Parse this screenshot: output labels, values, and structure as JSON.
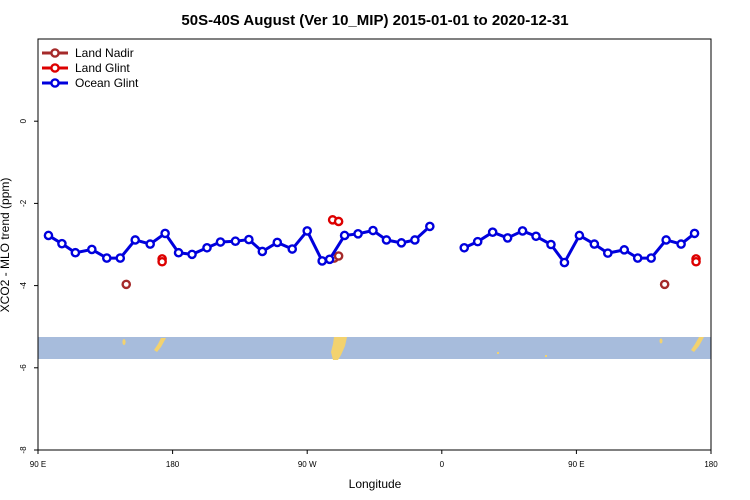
{
  "chart_data": {
    "type": "line",
    "title": "50S-40S August (Ver 10_MIP)   2015-01-01 to 2020-12-31",
    "xlabel": "Longitude",
    "ylabel": "XCO2 - MLO trend (ppm)",
    "xlim": [
      90,
      540
    ],
    "ylim": [
      -8,
      2
    ],
    "x_ticks": [
      {
        "value": 90,
        "label": "90 E"
      },
      {
        "value": 180,
        "label": "180"
      },
      {
        "value": 270,
        "label": "90 W"
      },
      {
        "value": 360,
        "label": "0"
      },
      {
        "value": 450,
        "label": "90 E"
      },
      {
        "value": 540,
        "label": "180"
      }
    ],
    "y_ticks": [
      {
        "value": 0,
        "label": "0"
      },
      {
        "value": -2,
        "label": "-2"
      },
      {
        "value": -4,
        "label": "-4"
      },
      {
        "value": -6,
        "label": "-6"
      },
      {
        "value": -8,
        "label": "-8"
      }
    ],
    "legend_position": "top-left",
    "series": [
      {
        "name": "Land Nadir",
        "color": "#a52a2a",
        "lines": false,
        "points": [
          [
            149,
            -3.97
          ],
          [
            288,
            -3.33
          ],
          [
            291,
            -3.28
          ],
          [
            509,
            -3.97
          ]
        ]
      },
      {
        "name": "Land Glint",
        "color": "#dd0000",
        "lines": false,
        "points": [
          [
            173,
            -3.35
          ],
          [
            173,
            -3.42
          ],
          [
            287,
            -2.4
          ],
          [
            291,
            -2.44
          ],
          [
            530,
            -3.35
          ],
          [
            530,
            -3.42
          ]
        ]
      },
      {
        "name": "Ocean Glint",
        "color": "#0000dd",
        "lines": true,
        "segments": [
          [
            [
              97,
              -2.78
            ],
            [
              106,
              -2.98
            ],
            [
              115,
              -3.2
            ],
            [
              126,
              -3.12
            ],
            [
              136,
              -3.33
            ],
            [
              145,
              -3.33
            ],
            [
              155,
              -2.89
            ],
            [
              165,
              -2.99
            ],
            [
              175,
              -2.73
            ],
            [
              184,
              -3.2
            ],
            [
              193,
              -3.24
            ],
            [
              203,
              -3.08
            ],
            [
              212,
              -2.94
            ],
            [
              222,
              -2.92
            ],
            [
              231,
              -2.88
            ],
            [
              240,
              -3.17
            ],
            [
              250,
              -2.95
            ],
            [
              260,
              -3.11
            ],
            [
              270,
              -2.67
            ],
            [
              280,
              -3.4
            ],
            [
              285,
              -3.36
            ],
            [
              295,
              -2.78
            ],
            [
              304,
              -2.74
            ],
            [
              314,
              -2.66
            ],
            [
              323,
              -2.89
            ],
            [
              333,
              -2.96
            ],
            [
              342,
              -2.89
            ],
            [
              352,
              -2.56
            ]
          ],
          [
            [
              375,
              -3.08
            ],
            [
              384,
              -2.93
            ],
            [
              394,
              -2.7
            ],
            [
              404,
              -2.84
            ],
            [
              414,
              -2.67
            ],
            [
              423,
              -2.8
            ],
            [
              433,
              -3.0
            ],
            [
              442,
              -3.44
            ],
            [
              452,
              -2.78
            ],
            [
              462,
              -2.99
            ],
            [
              471,
              -3.21
            ],
            [
              482,
              -3.13
            ],
            [
              491,
              -3.33
            ],
            [
              500,
              -3.33
            ],
            [
              510,
              -2.89
            ],
            [
              520,
              -2.99
            ],
            [
              529,
              -2.73
            ]
          ]
        ]
      }
    ]
  }
}
